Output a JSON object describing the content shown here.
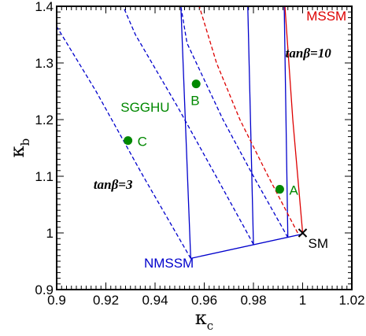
{
  "chart_data": {
    "type": "line",
    "title": "",
    "xlabel": "κ",
    "xlabel_sub": "c",
    "ylabel": "κ",
    "ylabel_sub": "b",
    "xlim": [
      0.9,
      1.02
    ],
    "ylim": [
      0.9,
      1.4
    ],
    "xticks": [
      0.9,
      0.92,
      0.94,
      0.96,
      0.98,
      1.0,
      1.02
    ],
    "xtick_labels": [
      "0.9",
      "0.92",
      "0.94",
      "0.96",
      "0.98",
      "1",
      "1.02"
    ],
    "yticks": [
      0.9,
      1.0,
      1.1,
      1.2,
      1.3,
      1.4
    ],
    "ytick_labels": [
      "0.9",
      "1",
      "1.1",
      "1.2",
      "1.3",
      "1.4"
    ],
    "colors": {
      "nmssm": "#0000cc",
      "mssm": "#dd0000",
      "points": "#008800",
      "sm": "#000000"
    },
    "series": [
      {
        "group": "NMSSM",
        "style": "solid",
        "color": "#0000cc",
        "x": [
          0.9545,
          1.0
        ],
        "y": [
          0.955,
          0.998
        ]
      },
      {
        "group": "NMSSM",
        "style": "solid",
        "color": "#0000cc",
        "x": [
          0.9545,
          0.9505
        ],
        "y": [
          0.955,
          1.4
        ]
      },
      {
        "group": "NMSSM",
        "style": "solid",
        "color": "#0000cc",
        "x": [
          0.98,
          0.9777
        ],
        "y": [
          0.98,
          1.4
        ]
      },
      {
        "group": "NMSSM",
        "style": "solid",
        "color": "#0000cc",
        "x": [
          0.994,
          0.9925
        ],
        "y": [
          0.992,
          1.4
        ]
      },
      {
        "group": "NMSSM",
        "style": "dashed",
        "color": "#0000cc",
        "x": [
          0.9545,
          0.9352,
          0.916,
          0.902,
          0.9
        ],
        "y": [
          0.955,
          1.1,
          1.25,
          1.35,
          1.364
        ]
      },
      {
        "group": "NMSSM",
        "style": "dashed",
        "color": "#0000cc",
        "x": [
          0.98,
          0.9648,
          0.9495,
          0.932,
          0.927
        ],
        "y": [
          0.98,
          1.1,
          1.22,
          1.35,
          1.4
        ]
      },
      {
        "group": "NMSSM",
        "style": "dashed",
        "color": "#0000cc",
        "x": [
          0.994,
          0.98,
          0.9676,
          0.953,
          0.9505
        ],
        "y": [
          0.992,
          1.1,
          1.2,
          1.335,
          1.4
        ]
      },
      {
        "group": "MSSM",
        "style": "dashed",
        "color": "#dd0000",
        "x": [
          0.998,
          0.986,
          0.9745,
          0.965,
          0.958
        ],
        "y": [
          1.0,
          1.1,
          1.2,
          1.3,
          1.4
        ]
      },
      {
        "group": "MSSM",
        "style": "solid",
        "color": "#dd0000",
        "x": [
          1.0,
          0.996,
          0.9928
        ],
        "y": [
          1.0,
          1.2,
          1.4
        ]
      }
    ],
    "points": [
      {
        "label": "A",
        "x": 0.9907,
        "y": 1.077,
        "color": "#008800"
      },
      {
        "label": "B",
        "x": 0.9567,
        "y": 1.263,
        "color": "#008800"
      },
      {
        "label": "C",
        "x": 0.929,
        "y": 1.163,
        "color": "#008800"
      }
    ],
    "sm_point": {
      "label": "SM",
      "x": 1.0,
      "y": 1.0
    },
    "annotations": [
      {
        "text": "MSSM",
        "color": "#dd0000",
        "x": 1.0015,
        "y": 1.375
      },
      {
        "text": "NMSSM",
        "color": "#0000cc",
        "x": 0.9355,
        "y": 0.939
      },
      {
        "text": "SGGHU",
        "color": "#008800",
        "x": 0.926,
        "y": 1.214
      },
      {
        "text_it": "tan",
        "text_rest": "β=10",
        "color": "#000000",
        "x": 0.993,
        "y": 1.31
      },
      {
        "text_it": "tan",
        "text_rest": "β=3",
        "color": "#000000",
        "x": 0.915,
        "y": 1.078
      }
    ]
  }
}
